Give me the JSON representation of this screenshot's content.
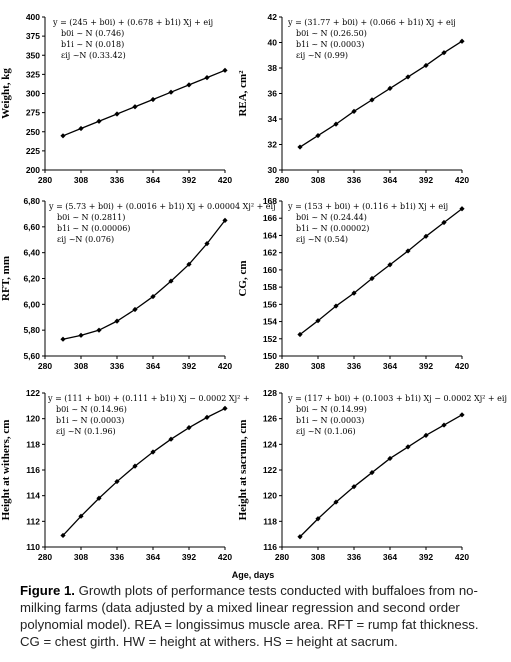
{
  "figure": {
    "xlabel": "Age, days",
    "caption_label": "Figure 1.",
    "caption_text": "Growth plots of performance tests conducted with buffaloes from no-milking farms (data adjusted by a mixed linear regression and second order polynomial model). REA = longissimus muscle area. RFT = rump fat thickness. CG = chest girth. HW = height at withers. HS = height at sacrum."
  },
  "chart_data": [
    {
      "type": "line",
      "ylabel": "Weight, kg",
      "xlim": [
        280,
        420
      ],
      "ylim": [
        200,
        400
      ],
      "xticks": [
        "280",
        "308",
        "336",
        "364",
        "392",
        "420"
      ],
      "yticks": [
        "200",
        "225",
        "250",
        "275",
        "300",
        "325",
        "350",
        "375",
        "400"
      ],
      "x": [
        294,
        308,
        322,
        336,
        350,
        364,
        378,
        392,
        406,
        420
      ],
      "y": [
        244.7,
        254.2,
        263.7,
        273.2,
        282.7,
        292.2,
        301.7,
        311.3,
        320.8,
        330.3
      ],
      "equation": [
        "y = (245 + b0i) + (0.678 + b1i) Xj + eij",
        "b0i ~ N (0.746)",
        "b1i ~ N (0.018)",
        "εij ~N (0.33.42)"
      ]
    },
    {
      "type": "line",
      "ylabel": "REA, cm²",
      "xlim": [
        280,
        420
      ],
      "ylim": [
        30,
        42
      ],
      "xticks": [
        "280",
        "308",
        "336",
        "364",
        "392",
        "420"
      ],
      "yticks": [
        "30",
        "32",
        "34",
        "36",
        "38",
        "40",
        "42"
      ],
      "x": [
        294,
        308,
        322,
        336,
        350,
        364,
        378,
        392,
        406,
        420
      ],
      "y": [
        31.8,
        32.7,
        33.6,
        34.6,
        35.5,
        36.4,
        37.3,
        38.2,
        39.2,
        40.1
      ],
      "equation": [
        "y = (31.77 + b0i) + (0.066 + b1i) Xj + eij",
        "b0i ~ N (0.26.50)",
        "b1i ~ N (0.0003)",
        "εij ~N (0.99)"
      ]
    },
    {
      "type": "line",
      "ylabel": "RFT, mm",
      "xlim": [
        280,
        420
      ],
      "ylim": [
        5.6,
        6.8
      ],
      "xticks": [
        "280",
        "308",
        "336",
        "364",
        "392",
        "420"
      ],
      "yticks": [
        "5,60",
        "5,80",
        "6,00",
        "6,20",
        "6,40",
        "6,60",
        "6,80"
      ],
      "x": [
        294,
        308,
        322,
        336,
        350,
        364,
        378,
        392,
        406,
        420
      ],
      "y": [
        5.73,
        5.76,
        5.8,
        5.87,
        5.96,
        6.06,
        6.18,
        6.31,
        6.47,
        6.65
      ],
      "equation": [
        "y = (5.73 + b0i) + (0.0016 + b1i) Xj + 0.00004 Xj² + eij",
        "b0i ~ N (0.2811)",
        "b1i ~ N (0.00006)",
        "εij ~N (0.076)"
      ]
    },
    {
      "type": "line",
      "ylabel": "CG, cm",
      "xlim": [
        280,
        420
      ],
      "ylim": [
        150,
        168
      ],
      "xticks": [
        "280",
        "308",
        "336",
        "364",
        "392",
        "420"
      ],
      "yticks": [
        "150",
        "152",
        "154",
        "156",
        "158",
        "160",
        "162",
        "164",
        "166",
        "168"
      ],
      "x": [
        294,
        308,
        322,
        336,
        350,
        364,
        378,
        392,
        406,
        420
      ],
      "y": [
        152.5,
        154.1,
        155.8,
        157.3,
        159.0,
        160.6,
        162.2,
        163.9,
        165.5,
        167.1
      ],
      "equation": [
        "y = (153 + b0i) + (0.116 + b1i) Xj + eij",
        "b0i ~ N (0.24.44)",
        "b1i ~ N (0.00002)",
        "εij ~N (0.54)"
      ]
    },
    {
      "type": "line",
      "ylabel": "Height at withers, cm",
      "xlim": [
        280,
        420
      ],
      "ylim": [
        110,
        122
      ],
      "xticks": [
        "280",
        "308",
        "336",
        "364",
        "392",
        "420"
      ],
      "yticks": [
        "110",
        "112",
        "114",
        "116",
        "118",
        "120",
        "122"
      ],
      "x": [
        294,
        308,
        322,
        336,
        350,
        364,
        378,
        392,
        406,
        420
      ],
      "y": [
        110.9,
        112.4,
        113.8,
        115.1,
        116.3,
        117.4,
        118.4,
        119.3,
        120.1,
        120.8
      ],
      "equation": [
        "y = (111 + b0i) + (0.111 + b1i) Xj − 0.0002 Xj² +",
        "b0i ~ N (0.14.96)",
        "b1i ~ N (0.0003)",
        "εij ~N (0.1.96)"
      ]
    },
    {
      "type": "line",
      "ylabel": "Height at sacrum, cm",
      "xlim": [
        280,
        420
      ],
      "ylim": [
        116,
        128
      ],
      "xticks": [
        "280",
        "308",
        "336",
        "364",
        "392",
        "420"
      ],
      "yticks": [
        "116",
        "118",
        "120",
        "122",
        "124",
        "126",
        "128"
      ],
      "x": [
        294,
        308,
        322,
        336,
        350,
        364,
        378,
        392,
        406,
        420
      ],
      "y": [
        116.8,
        118.2,
        119.5,
        120.7,
        121.8,
        122.9,
        123.8,
        124.7,
        125.5,
        126.3
      ],
      "equation": [
        "y = (117 + b0i) + (0.1003 + b1i) Xj − 0.0002 Xj² + eij",
        "b0i ~ N (0.14.99)",
        "b1i ~ N (0.0003)",
        "εij ~N (0.1.06)"
      ]
    }
  ]
}
